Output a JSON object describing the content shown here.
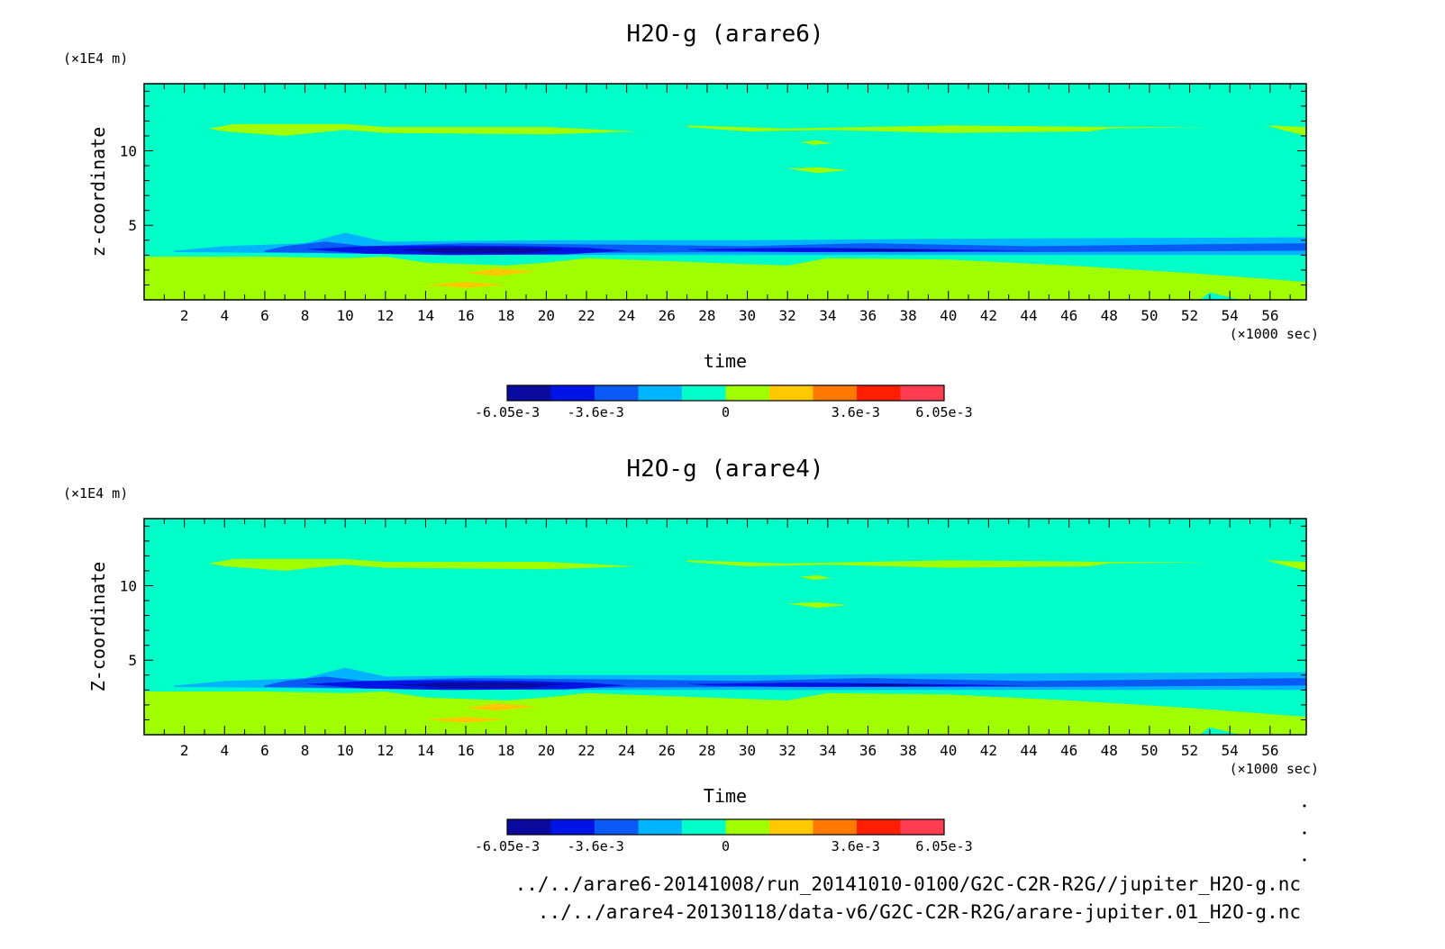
{
  "chart_data": [
    {
      "type": "heatmap",
      "title": "H2O-g (arare6)",
      "xlabel": "time",
      "ylabel": "z-coordinate",
      "x_unit": "(×1000 sec)",
      "y_unit": "(×1E4 m)",
      "xlim": [
        0,
        57.8
      ],
      "ylim": [
        0,
        14.5
      ],
      "x_ticks": [
        2,
        4,
        6,
        8,
        10,
        12,
        14,
        16,
        18,
        20,
        22,
        24,
        26,
        28,
        30,
        32,
        34,
        36,
        38,
        40,
        42,
        44,
        46,
        48,
        50,
        52,
        54,
        56
      ],
      "y_ticks": [
        5,
        10
      ],
      "colorbar": {
        "levels": [
          -0.00605,
          -0.00484,
          -0.0036,
          -0.0024,
          -0.0012,
          0,
          0.0012,
          0.0024,
          0.0036,
          0.00484,
          0.00605
        ],
        "tick_labels": [
          "-6.05e-3",
          "-3.6e-3",
          "0",
          "3.6e-3",
          "6.05e-3"
        ],
        "colors": [
          "#0a0a9e",
          "#0014e6",
          "#0a5af5",
          "#00b4ff",
          "#00ffc8",
          "#a0ff00",
          "#ffc800",
          "#ff7800",
          "#ff1e00",
          "#ff3c50"
        ]
      }
    },
    {
      "type": "heatmap",
      "title": "H2O-g (arare4)",
      "xlabel": "Time",
      "ylabel": "Z-coordinate",
      "x_unit": "(×1000 sec)",
      "y_unit": "(×1E4 m)",
      "xlim": [
        0,
        57.8
      ],
      "ylim": [
        0,
        14.5
      ],
      "x_ticks": [
        2,
        4,
        6,
        8,
        10,
        12,
        14,
        16,
        18,
        20,
        22,
        24,
        26,
        28,
        30,
        32,
        34,
        36,
        38,
        40,
        42,
        44,
        46,
        48,
        50,
        52,
        54,
        56
      ],
      "y_ticks": [
        5,
        10
      ],
      "colorbar": {
        "levels": [
          -0.00605,
          -0.00484,
          -0.0036,
          -0.0024,
          -0.0012,
          0,
          0.0012,
          0.0024,
          0.0036,
          0.00484,
          0.00605
        ],
        "tick_labels": [
          "-6.05e-3",
          "-3.6e-3",
          "0",
          "3.6e-3",
          "6.05e-3"
        ],
        "colors": [
          "#0a0a9e",
          "#0014e6",
          "#0a5af5",
          "#00b4ff",
          "#00ffc8",
          "#a0ff00",
          "#ffc800",
          "#ff7800",
          "#ff1e00",
          "#ff3c50"
        ]
      }
    }
  ],
  "footer": {
    "file_1": "../../arare6-20141008/run_20141010-0100/G2C-C2R-R2G//jupiter_H2O-g.nc",
    "file_2": "../../arare4-20130118/data-v6/G2C-C2R-R2G/arare-jupiter.01_H2O-g.nc"
  }
}
